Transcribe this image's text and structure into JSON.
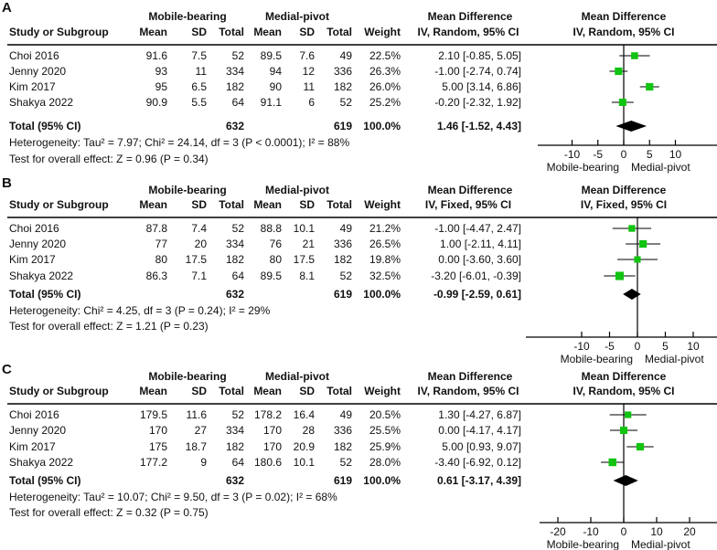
{
  "chart_data": [
    {
      "panel_label": "A",
      "type": "forest",
      "group1": "Mobile-bearing",
      "group2": "Medial-pivot",
      "col_study": "Study or Subgroup",
      "col_mean": "Mean",
      "col_sd": "SD",
      "col_total": "Total",
      "col_weight": "Weight",
      "effect_header": "Mean Difference",
      "method": "IV, Random, 95% CI",
      "studies": [
        {
          "name": "Choi 2016",
          "mb_mean": "91.6",
          "mb_sd": "7.5",
          "mb_total": "52",
          "mp_mean": "89.5",
          "mp_sd": "7.6",
          "mp_total": "49",
          "weight": "22.5%",
          "ci_text": "2.10 [-0.85, 5.05]",
          "md": 2.1,
          "lo": -0.85,
          "hi": 5.05,
          "w": 22.5
        },
        {
          "name": "Jenny 2020",
          "mb_mean": "93",
          "mb_sd": "11",
          "mb_total": "334",
          "mp_mean": "94",
          "mp_sd": "12",
          "mp_total": "336",
          "weight": "26.3%",
          "ci_text": "-1.00 [-2.74, 0.74]",
          "md": -1.0,
          "lo": -2.74,
          "hi": 0.74,
          "w": 26.3
        },
        {
          "name": "Kim 2017",
          "mb_mean": "95",
          "mb_sd": "6.5",
          "mb_total": "182",
          "mp_mean": "90",
          "mp_sd": "11",
          "mp_total": "182",
          "weight": "26.0%",
          "ci_text": "5.00 [3.14, 6.86]",
          "md": 5.0,
          "lo": 3.14,
          "hi": 6.86,
          "w": 26.0
        },
        {
          "name": "Shakya 2022",
          "mb_mean": "90.9",
          "mb_sd": "5.5",
          "mb_total": "64",
          "mp_mean": "91.1",
          "mp_sd": "6",
          "mp_total": "52",
          "weight": "25.2%",
          "ci_text": "-0.20 [-2.32, 1.92]",
          "md": -0.2,
          "lo": -2.32,
          "hi": 1.92,
          "w": 25.2
        }
      ],
      "total": {
        "label": "Total (95% CI)",
        "mb_total": "632",
        "mp_total": "619",
        "weight": "100.0%",
        "ci_text": "1.46 [-1.52, 4.43]",
        "md": 1.46,
        "lo": -1.52,
        "hi": 4.43
      },
      "heterogeneity": "Heterogeneity: Tau² = 7.97; Chi² = 24.14, df = 3 (P < 0.0001); I² = 88%",
      "overall": "Test for overall effect: Z = 0.96 (P = 0.34)",
      "x_ticks": [
        -10,
        -5,
        0,
        5,
        10
      ],
      "x_tick_labels": [
        "-10",
        "-5",
        "0",
        "5",
        "10"
      ],
      "xlim": [
        -15.5,
        17.5
      ],
      "favours_left": "Mobile-bearing",
      "favours_right": "Medial-pivot"
    },
    {
      "panel_label": "B",
      "type": "forest",
      "group1": "Mobile-bearing",
      "group2": "Medial-pivot",
      "col_study": "Study or Subgroup",
      "col_mean": "Mean",
      "col_sd": "SD",
      "col_total": "Total",
      "col_weight": "Weight",
      "effect_header": "Mean Difference",
      "method": "IV, Fixed, 95% CI",
      "studies": [
        {
          "name": "Choi 2016",
          "mb_mean": "87.8",
          "mb_sd": "7.4",
          "mb_total": "52",
          "mp_mean": "88.8",
          "mp_sd": "10.1",
          "mp_total": "49",
          "weight": "21.2%",
          "ci_text": "-1.00 [-4.47, 2.47]",
          "md": -1.0,
          "lo": -4.47,
          "hi": 2.47,
          "w": 21.2
        },
        {
          "name": "Jenny 2020",
          "mb_mean": "77",
          "mb_sd": "20",
          "mb_total": "334",
          "mp_mean": "76",
          "mp_sd": "21",
          "mp_total": "336",
          "weight": "26.5%",
          "ci_text": "1.00 [-2.11, 4.11]",
          "md": 1.0,
          "lo": -2.11,
          "hi": 4.11,
          "w": 26.5
        },
        {
          "name": "Kim 2017",
          "mb_mean": "80",
          "mb_sd": "17.5",
          "mb_total": "182",
          "mp_mean": "80",
          "mp_sd": "17.5",
          "mp_total": "182",
          "weight": "19.8%",
          "ci_text": "0.00 [-3.60, 3.60]",
          "md": 0.0,
          "lo": -3.6,
          "hi": 3.6,
          "w": 19.8
        },
        {
          "name": "Shakya 2022",
          "mb_mean": "86.3",
          "mb_sd": "7.1",
          "mb_total": "64",
          "mp_mean": "89.5",
          "mp_sd": "8.1",
          "mp_total": "52",
          "weight": "32.5%",
          "ci_text": "-3.20 [-6.01, -0.39]",
          "md": -3.2,
          "lo": -6.01,
          "hi": -0.39,
          "w": 32.5
        }
      ],
      "total": {
        "label": "Total (95% CI)",
        "mb_total": "632",
        "mp_total": "619",
        "weight": "100.0%",
        "ci_text": "-0.99 [-2.59, 0.61]",
        "md": -0.99,
        "lo": -2.59,
        "hi": 0.61
      },
      "heterogeneity": "Heterogeneity: Chi² = 4.25, df = 3 (P = 0.24); I² = 29%",
      "overall": "Test for overall effect: Z = 1.21 (P = 0.23)",
      "x_ticks": [
        -10,
        -5,
        0,
        5,
        10
      ],
      "x_tick_labels": [
        "-10",
        "-5",
        "0",
        "5",
        "10"
      ],
      "xlim": [
        -20,
        14
      ],
      "favours_left": "Mobile-bearing",
      "favours_right": "Medial-pivot"
    },
    {
      "panel_label": "C",
      "type": "forest",
      "group1": "Mobile-bearing",
      "group2": "Medial-pivot",
      "col_study": "Study or Subgroup",
      "col_mean": "Mean",
      "col_sd": "SD",
      "col_total": "Total",
      "col_weight": "Weight",
      "effect_header": "Mean Difference",
      "method": "IV, Random, 95% CI",
      "studies": [
        {
          "name": "Choi 2016",
          "mb_mean": "179.5",
          "mb_sd": "11.6",
          "mb_total": "52",
          "mp_mean": "178.2",
          "mp_sd": "16.4",
          "mp_total": "49",
          "weight": "20.5%",
          "ci_text": "1.30 [-4.27, 6.87]",
          "md": 1.3,
          "lo": -4.27,
          "hi": 6.87,
          "w": 20.5
        },
        {
          "name": "Jenny 2020",
          "mb_mean": "170",
          "mb_sd": "27",
          "mb_total": "334",
          "mp_mean": "170",
          "mp_sd": "28",
          "mp_total": "336",
          "weight": "25.5%",
          "ci_text": "0.00 [-4.17, 4.17]",
          "md": 0.0,
          "lo": -4.17,
          "hi": 4.17,
          "w": 25.5
        },
        {
          "name": "Kim 2017",
          "mb_mean": "175",
          "mb_sd": "18.7",
          "mb_total": "182",
          "mp_mean": "170",
          "mp_sd": "20.9",
          "mp_total": "182",
          "weight": "25.9%",
          "ci_text": "5.00 [0.93, 9.07]",
          "md": 5.0,
          "lo": 0.93,
          "hi": 9.07,
          "w": 25.9
        },
        {
          "name": "Shakya 2022",
          "mb_mean": "177.2",
          "mb_sd": "9",
          "mb_total": "64",
          "mp_mean": "180.6",
          "mp_sd": "10.1",
          "mp_total": "52",
          "weight": "28.0%",
          "ci_text": "-3.40 [-6.92, 0.12]",
          "md": -3.4,
          "lo": -6.92,
          "hi": 0.12,
          "w": 28.0
        }
      ],
      "total": {
        "label": "Total (95% CI)",
        "mb_total": "632",
        "mp_total": "619",
        "weight": "100.0%",
        "ci_text": "0.61 [-3.17, 4.39]",
        "md": 0.61,
        "lo": -3.17,
        "hi": 4.39
      },
      "heterogeneity": "Heterogeneity: Tau² = 10.07; Chi² = 9.50, df = 3 (P = 0.02); I² = 68%",
      "overall": "Test for overall effect: Z = 0.32 (P = 0.75)",
      "x_ticks": [
        -20,
        -10,
        0,
        10,
        20
      ],
      "x_tick_labels": [
        "-20",
        "-10",
        "0",
        "10",
        "20"
      ],
      "xlim": [
        -25,
        28
      ],
      "favours_left": "Mobile-bearing",
      "favours_right": "Medial-pivot"
    }
  ],
  "colors": {
    "marker": "#11c411",
    "text": "#111111",
    "diamond": "#000000"
  }
}
